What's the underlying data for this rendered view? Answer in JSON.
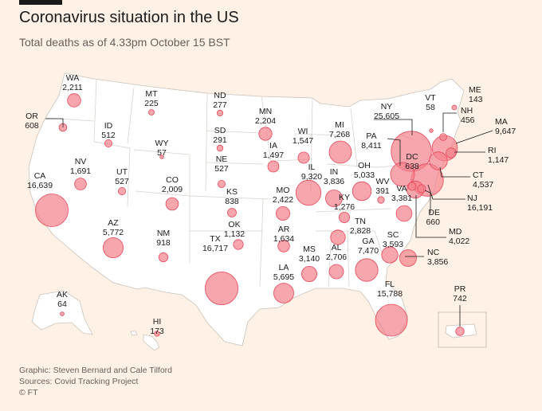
{
  "header": {
    "title": "Coronavirus situation in the US",
    "subtitle": "Total deaths as of 4.33pm October 15 BST"
  },
  "footer": {
    "graphic": "Graphic: Steven Bernard and Cale Tilford",
    "sources": "Sources: Covid Tracking Project",
    "copyright": "© FT"
  },
  "colors": {
    "background": "#fff1e5",
    "land": "#ffffff",
    "border": "#c9c2bb",
    "bubble_fill": "#f4808a",
    "bubble_stroke": "#e8475a",
    "text": "#1a1a1a"
  },
  "chart_data": {
    "type": "bubble-map",
    "metric": "Total deaths",
    "states": [
      {
        "code": "WA",
        "value": 2211
      },
      {
        "code": "OR",
        "value": 608
      },
      {
        "code": "CA",
        "value": 16639
      },
      {
        "code": "ID",
        "value": 512
      },
      {
        "code": "NV",
        "value": 1691
      },
      {
        "code": "MT",
        "value": 225
      },
      {
        "code": "WY",
        "value": 57
      },
      {
        "code": "UT",
        "value": 527
      },
      {
        "code": "AZ",
        "value": 5772
      },
      {
        "code": "CO",
        "value": 2009
      },
      {
        "code": "NM",
        "value": 918
      },
      {
        "code": "ND",
        "value": 277
      },
      {
        "code": "SD",
        "value": 291
      },
      {
        "code": "NE",
        "value": 527
      },
      {
        "code": "KS",
        "value": 838
      },
      {
        "code": "OK",
        "value": 1132
      },
      {
        "code": "TX",
        "value": 16717
      },
      {
        "code": "MN",
        "value": 2204
      },
      {
        "code": "IA",
        "value": 1497
      },
      {
        "code": "MO",
        "value": 2422
      },
      {
        "code": "AR",
        "value": 1634
      },
      {
        "code": "LA",
        "value": 5695
      },
      {
        "code": "WI",
        "value": 1547
      },
      {
        "code": "IL",
        "value": 9320
      },
      {
        "code": "MI",
        "value": 7268
      },
      {
        "code": "IN",
        "value": 3836
      },
      {
        "code": "OH",
        "value": 5033
      },
      {
        "code": "KY",
        "value": 1276
      },
      {
        "code": "TN",
        "value": 2828
      },
      {
        "code": "MS",
        "value": 3140
      },
      {
        "code": "AL",
        "value": 2706
      },
      {
        "code": "GA",
        "value": 7470
      },
      {
        "code": "FL",
        "value": 15788
      },
      {
        "code": "SC",
        "value": 3593
      },
      {
        "code": "NC",
        "value": 3856
      },
      {
        "code": "VA",
        "value": 3381
      },
      {
        "code": "WV",
        "value": 391
      },
      {
        "code": "PA",
        "value": 8411
      },
      {
        "code": "NY",
        "value": 25605
      },
      {
        "code": "VT",
        "value": 58
      },
      {
        "code": "NH",
        "value": 456
      },
      {
        "code": "ME",
        "value": 143
      },
      {
        "code": "MA",
        "value": 9647
      },
      {
        "code": "RI",
        "value": 1147
      },
      {
        "code": "CT",
        "value": 4537
      },
      {
        "code": "NJ",
        "value": 16191
      },
      {
        "code": "DE",
        "value": 660
      },
      {
        "code": "MD",
        "value": 4022
      },
      {
        "code": "DC",
        "value": 638
      },
      {
        "code": "AK",
        "value": 64
      },
      {
        "code": "HI",
        "value": 173
      },
      {
        "code": "PR",
        "value": 742
      }
    ]
  }
}
